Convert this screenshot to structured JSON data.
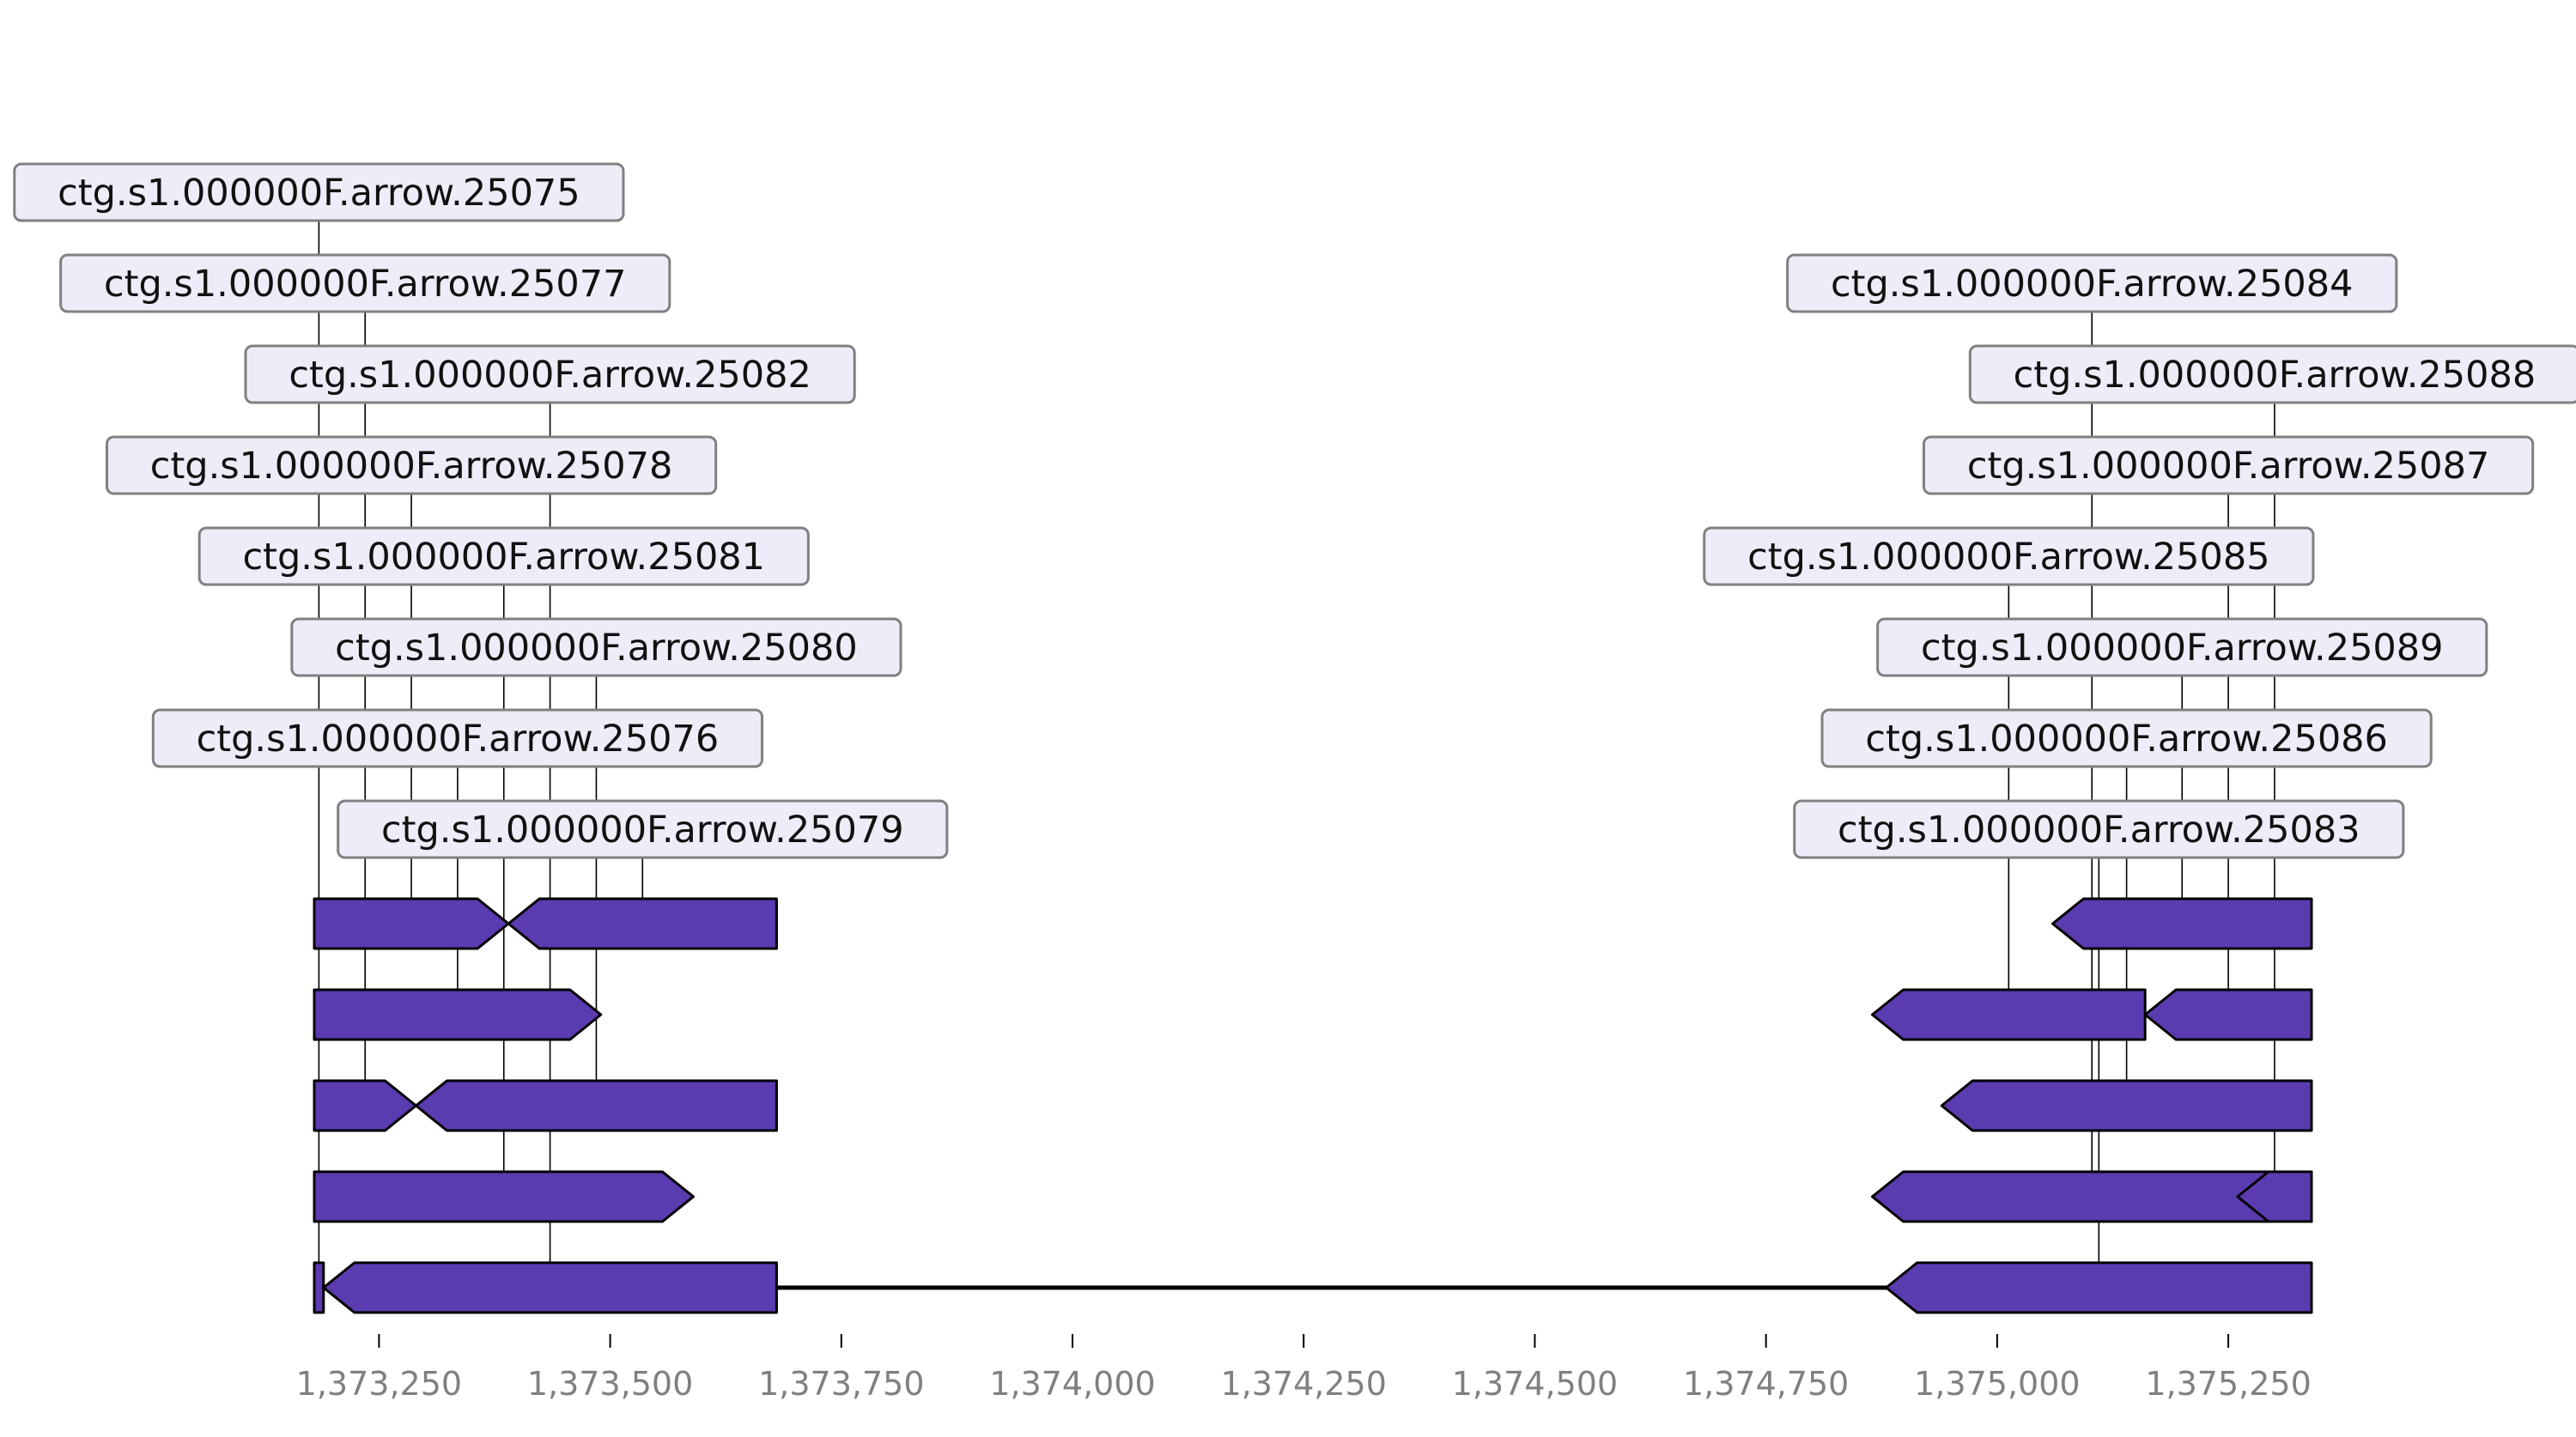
{
  "colors": {
    "gene_fill": "#5b3bb0",
    "gene_stroke": "#000000",
    "label_fill": "#eeecf7",
    "label_stroke": "#808080",
    "axis_text": "#808080"
  },
  "axis": {
    "range": [
      1373180,
      1375340
    ],
    "ticks": [
      "1,373,250",
      "1,373,500",
      "1,373,750",
      "1,374,000",
      "1,374,250",
      "1,374,500",
      "1,374,750",
      "1,375,000",
      "1,375,250"
    ],
    "tick_values": [
      1373250,
      1373500,
      1373750,
      1374000,
      1374250,
      1374500,
      1374750,
      1375000,
      1375250
    ]
  },
  "backbone": {
    "start": 1373180,
    "end": 1375340
  },
  "features": [
    {
      "id": "ctg.s1.000000F.arrow.25075",
      "start": 1373180,
      "end": 1373190,
      "strand": 1,
      "row": 4,
      "label_level": 7
    },
    {
      "id": "ctg.s1.000000F.arrow.25077",
      "start": 1373180,
      "end": 1373290,
      "strand": 1,
      "row": 2,
      "label_level": 6
    },
    {
      "id": "ctg.s1.000000F.arrow.25082",
      "start": 1373190,
      "end": 1373680,
      "strand": -1,
      "row": 4,
      "label_level": 5
    },
    {
      "id": "ctg.s1.000000F.arrow.25078",
      "start": 1373180,
      "end": 1373390,
      "strand": 1,
      "row": 0,
      "label_level": 4
    },
    {
      "id": "ctg.s1.000000F.arrow.25081",
      "start": 1373180,
      "end": 1373590,
      "strand": 1,
      "row": 3,
      "label_level": 3
    },
    {
      "id": "ctg.s1.000000F.arrow.25080",
      "start": 1373290,
      "end": 1373680,
      "strand": -1,
      "row": 2,
      "label_level": 2
    },
    {
      "id": "ctg.s1.000000F.arrow.25076",
      "start": 1373180,
      "end": 1373490,
      "strand": 1,
      "row": 1,
      "label_level": 1
    },
    {
      "id": "ctg.s1.000000F.arrow.25079",
      "start": 1373390,
      "end": 1373680,
      "strand": -1,
      "row": 0,
      "label_level": 0
    },
    {
      "id": "ctg.s1.000000F.arrow.25084",
      "start": 1374865,
      "end": 1375340,
      "strand": -1,
      "row": 3,
      "label_level": 6
    },
    {
      "id": "ctg.s1.000000F.arrow.25088",
      "start": 1375260,
      "end": 1375340,
      "strand": -1,
      "row": 3,
      "label_level": 5
    },
    {
      "id": "ctg.s1.000000F.arrow.25087",
      "start": 1375160,
      "end": 1375340,
      "strand": -1,
      "row": 1,
      "label_level": 4
    },
    {
      "id": "ctg.s1.000000F.arrow.25085",
      "start": 1374865,
      "end": 1375160,
      "strand": -1,
      "row": 1,
      "label_level": 3
    },
    {
      "id": "ctg.s1.000000F.arrow.25089",
      "start": 1375060,
      "end": 1375340,
      "strand": -1,
      "row": 0,
      "label_level": 2
    },
    {
      "id": "ctg.s1.000000F.arrow.25086",
      "start": 1374940,
      "end": 1375340,
      "strand": -1,
      "row": 2,
      "label_level": 1
    },
    {
      "id": "ctg.s1.000000F.arrow.25083",
      "start": 1374880,
      "end": 1375340,
      "strand": -1,
      "row": 4,
      "label_level": 0
    }
  ]
}
